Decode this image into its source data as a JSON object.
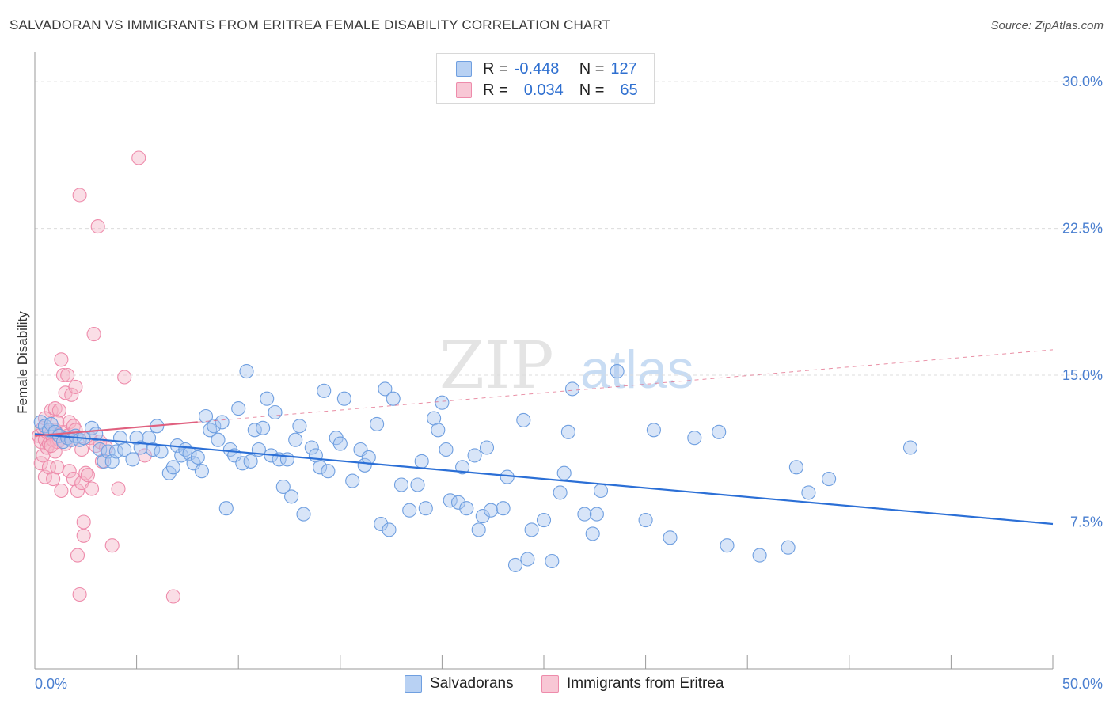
{
  "header": {
    "title": "SALVADORAN VS IMMIGRANTS FROM ERITREA FEMALE DISABILITY CORRELATION CHART",
    "source": "Source: ZipAtlas.com"
  },
  "legend": {
    "rows": [
      {
        "r_label": "R =",
        "r_value": "-0.448",
        "n_label": "N =",
        "n_value": "127"
      },
      {
        "r_label": "R =",
        "r_value": "0.034",
        "n_label": "N =",
        "n_value": "65"
      }
    ]
  },
  "bottom_legend": {
    "items": [
      "Salvadorans",
      "Immigrants from Eritrea"
    ]
  },
  "watermark": {
    "zip": "ZIP",
    "atlas": "atlas"
  },
  "colors": {
    "blue_fill": "#a9c6f0",
    "blue_stroke": "#6f9fe0",
    "blue_line": "#2b6fd6",
    "pink_fill": "#f5b6c8",
    "pink_stroke": "#ee8bab",
    "pink_line": "#e0607f",
    "axis_text": "#4a7fd0",
    "grid": "#dcdcdc"
  },
  "chart_data": {
    "type": "scatter",
    "title": "SALVADORAN VS IMMIGRANTS FROM ERITREA FEMALE DISABILITY CORRELATION CHART",
    "xlabel": "",
    "ylabel": "Female Disability",
    "xlim": [
      0,
      50
    ],
    "ylim": [
      0,
      31.5
    ],
    "x_tick_labels": [
      "0.0%",
      "50.0%"
    ],
    "y_ticks": [
      7.5,
      15.0,
      22.5,
      30.0
    ],
    "y_tick_labels": [
      "7.5%",
      "15.0%",
      "22.5%",
      "30.0%"
    ],
    "grid": true,
    "series": [
      {
        "name": "Salvadorans",
        "R": -0.448,
        "N": 127,
        "trend": {
          "x": [
            0,
            50
          ],
          "y": [
            12.0,
            7.4
          ]
        },
        "points": [
          [
            0.3,
            12.6
          ],
          [
            0.5,
            12.4
          ],
          [
            0.7,
            12.2
          ],
          [
            0.8,
            12.5
          ],
          [
            1.0,
            12.1
          ],
          [
            1.2,
            11.9
          ],
          [
            1.4,
            11.6
          ],
          [
            1.6,
            11.8
          ],
          [
            1.8,
            11.7
          ],
          [
            2.0,
            11.9
          ],
          [
            2.2,
            11.7
          ],
          [
            2.4,
            11.8
          ],
          [
            2.8,
            12.3
          ],
          [
            3.0,
            12.0
          ],
          [
            3.2,
            11.2
          ],
          [
            3.4,
            10.6
          ],
          [
            3.6,
            11.1
          ],
          [
            3.8,
            10.6
          ],
          [
            4.0,
            11.1
          ],
          [
            4.2,
            11.8
          ],
          [
            4.4,
            11.2
          ],
          [
            4.8,
            10.7
          ],
          [
            5.0,
            11.8
          ],
          [
            5.2,
            11.3
          ],
          [
            5.6,
            11.8
          ],
          [
            5.8,
            11.2
          ],
          [
            6.0,
            12.4
          ],
          [
            6.2,
            11.1
          ],
          [
            6.6,
            10.0
          ],
          [
            6.8,
            10.3
          ],
          [
            7.0,
            11.4
          ],
          [
            7.2,
            10.9
          ],
          [
            7.4,
            11.2
          ],
          [
            7.6,
            11.0
          ],
          [
            7.8,
            10.5
          ],
          [
            8.0,
            10.8
          ],
          [
            8.2,
            10.1
          ],
          [
            8.4,
            12.9
          ],
          [
            8.6,
            12.2
          ],
          [
            8.8,
            12.4
          ],
          [
            9.0,
            11.7
          ],
          [
            9.2,
            12.6
          ],
          [
            9.4,
            8.2
          ],
          [
            9.6,
            11.2
          ],
          [
            9.8,
            10.9
          ],
          [
            10.0,
            13.3
          ],
          [
            10.2,
            10.5
          ],
          [
            10.4,
            15.2
          ],
          [
            10.6,
            10.6
          ],
          [
            10.8,
            12.2
          ],
          [
            11.0,
            11.2
          ],
          [
            11.2,
            12.3
          ],
          [
            11.4,
            13.8
          ],
          [
            11.6,
            10.9
          ],
          [
            11.8,
            13.1
          ],
          [
            12.0,
            10.7
          ],
          [
            12.2,
            9.3
          ],
          [
            12.4,
            10.7
          ],
          [
            12.6,
            8.8
          ],
          [
            12.8,
            11.7
          ],
          [
            13.0,
            12.4
          ],
          [
            13.2,
            7.9
          ],
          [
            13.6,
            11.3
          ],
          [
            13.8,
            10.9
          ],
          [
            14.0,
            10.3
          ],
          [
            14.2,
            14.2
          ],
          [
            14.4,
            10.1
          ],
          [
            14.8,
            11.8
          ],
          [
            15.0,
            11.5
          ],
          [
            15.2,
            13.8
          ],
          [
            15.6,
            9.6
          ],
          [
            16.0,
            11.2
          ],
          [
            16.2,
            10.4
          ],
          [
            16.4,
            10.8
          ],
          [
            16.8,
            12.5
          ],
          [
            17.0,
            7.4
          ],
          [
            17.2,
            14.3
          ],
          [
            17.4,
            7.1
          ],
          [
            17.6,
            13.8
          ],
          [
            18.0,
            9.4
          ],
          [
            18.4,
            8.1
          ],
          [
            18.8,
            9.4
          ],
          [
            19.0,
            10.6
          ],
          [
            19.2,
            8.2
          ],
          [
            19.6,
            12.8
          ],
          [
            19.8,
            12.2
          ],
          [
            20.0,
            13.6
          ],
          [
            20.2,
            11.2
          ],
          [
            20.4,
            8.6
          ],
          [
            20.8,
            8.5
          ],
          [
            21.0,
            10.3
          ],
          [
            21.2,
            8.2
          ],
          [
            21.6,
            10.9
          ],
          [
            21.8,
            7.1
          ],
          [
            22.0,
            7.8
          ],
          [
            22.2,
            11.3
          ],
          [
            22.4,
            8.1
          ],
          [
            23.0,
            8.2
          ],
          [
            23.2,
            9.8
          ],
          [
            23.6,
            5.3
          ],
          [
            24.0,
            12.7
          ],
          [
            24.2,
            5.6
          ],
          [
            24.4,
            7.1
          ],
          [
            25.0,
            7.6
          ],
          [
            25.4,
            5.5
          ],
          [
            25.8,
            9.0
          ],
          [
            26.0,
            10.0
          ],
          [
            26.2,
            12.1
          ],
          [
            26.4,
            14.3
          ],
          [
            27.0,
            7.9
          ],
          [
            27.4,
            6.9
          ],
          [
            27.6,
            7.9
          ],
          [
            27.8,
            9.1
          ],
          [
            28.6,
            15.2
          ],
          [
            30.0,
            7.6
          ],
          [
            30.4,
            12.2
          ],
          [
            31.2,
            6.7
          ],
          [
            32.4,
            11.8
          ],
          [
            33.6,
            12.1
          ],
          [
            34.0,
            6.3
          ],
          [
            35.6,
            5.8
          ],
          [
            37.0,
            6.2
          ],
          [
            37.4,
            10.3
          ],
          [
            38.0,
            9.0
          ],
          [
            39.0,
            9.7
          ],
          [
            43.0,
            11.3
          ]
        ]
      },
      {
        "name": "Immigrants from Eritrea",
        "R": 0.034,
        "N": 65,
        "trend": {
          "x": [
            0,
            50
          ],
          "y": [
            11.9,
            16.3
          ]
        },
        "trend_solid_until_x": 8.0,
        "points": [
          [
            0.2,
            11.9
          ],
          [
            0.3,
            11.6
          ],
          [
            0.3,
            10.5
          ],
          [
            0.4,
            12.3
          ],
          [
            0.4,
            10.9
          ],
          [
            0.5,
            11.7
          ],
          [
            0.5,
            9.8
          ],
          [
            0.6,
            12.1
          ],
          [
            0.6,
            11.3
          ],
          [
            0.7,
            11.5
          ],
          [
            0.7,
            10.3
          ],
          [
            0.8,
            12.0
          ],
          [
            0.8,
            13.2
          ],
          [
            0.9,
            11.7
          ],
          [
            0.9,
            9.7
          ],
          [
            1.0,
            12.2
          ],
          [
            1.0,
            13.3
          ],
          [
            1.0,
            11.1
          ],
          [
            1.1,
            11.6
          ],
          [
            1.1,
            10.3
          ],
          [
            1.2,
            13.2
          ],
          [
            1.2,
            11.7
          ],
          [
            1.3,
            15.8
          ],
          [
            1.3,
            9.1
          ],
          [
            1.4,
            15.0
          ],
          [
            1.4,
            12.1
          ],
          [
            1.5,
            11.5
          ],
          [
            1.5,
            14.1
          ],
          [
            1.6,
            15.0
          ],
          [
            1.6,
            11.9
          ],
          [
            1.7,
            12.6
          ],
          [
            1.7,
            10.1
          ],
          [
            1.8,
            14.0
          ],
          [
            1.8,
            11.7
          ],
          [
            1.9,
            12.4
          ],
          [
            1.9,
            9.7
          ],
          [
            2.0,
            14.4
          ],
          [
            2.0,
            12.2
          ],
          [
            2.1,
            5.8
          ],
          [
            2.1,
            9.1
          ],
          [
            2.2,
            24.2
          ],
          [
            2.2,
            3.8
          ],
          [
            2.3,
            9.5
          ],
          [
            2.3,
            11.2
          ],
          [
            2.4,
            7.5
          ],
          [
            2.4,
            6.8
          ],
          [
            2.5,
            10.0
          ],
          [
            2.6,
            9.9
          ],
          [
            2.7,
            11.8
          ],
          [
            2.8,
            9.2
          ],
          [
            2.9,
            17.1
          ],
          [
            3.0,
            11.4
          ],
          [
            3.1,
            22.6
          ],
          [
            3.2,
            11.6
          ],
          [
            3.3,
            10.6
          ],
          [
            3.5,
            11.3
          ],
          [
            3.8,
            6.3
          ],
          [
            4.1,
            9.2
          ],
          [
            4.4,
            14.9
          ],
          [
            5.1,
            26.1
          ],
          [
            5.4,
            10.9
          ],
          [
            6.8,
            3.7
          ],
          [
            0.5,
            12.8
          ],
          [
            1.1,
            12.6
          ],
          [
            0.8,
            11.4
          ]
        ]
      }
    ]
  }
}
